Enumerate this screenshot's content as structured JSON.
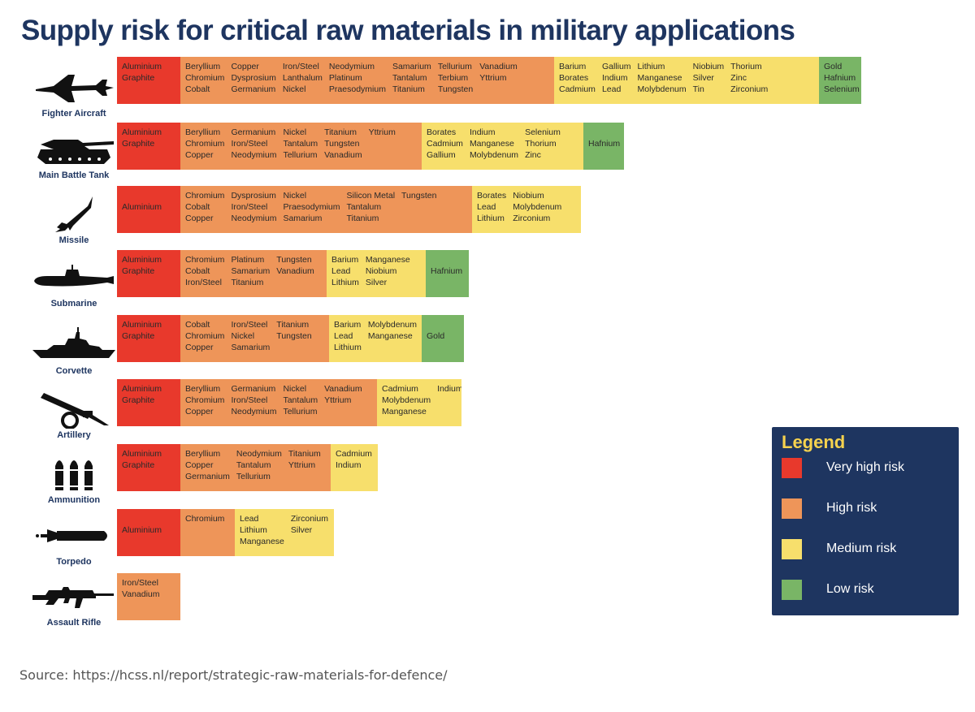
{
  "title": "Supply risk for critical raw materials in military applications",
  "source": "Source: https://hcss.nl/report/strategic-raw-materials-for-defence/",
  "colors": {
    "very_high": "#e8392c",
    "high": "#ee9559",
    "medium": "#f7df6c",
    "low": "#79b566"
  },
  "legend": {
    "title": "Legend",
    "items": [
      {
        "label": "Very high risk",
        "color": "#e8392c"
      },
      {
        "label": "High risk",
        "color": "#ee9559"
      },
      {
        "label": "Medium risk",
        "color": "#f7df6c"
      },
      {
        "label": "Low risk",
        "color": "#79b566"
      }
    ]
  },
  "chart_data": {
    "type": "table",
    "title": "Supply risk for critical raw materials in military applications",
    "risk_levels": [
      "Very high risk",
      "High risk",
      "Medium risk",
      "Low risk"
    ],
    "platforms": [
      {
        "name": "Fighter Aircraft",
        "icon": "fighter-aircraft-icon",
        "risk": {
          "very_high": [
            [
              "Aluminium",
              "Graphite"
            ]
          ],
          "high": [
            [
              "Beryllium",
              "Chromium",
              "Cobalt"
            ],
            [
              "Copper",
              "Dysprosium",
              "Germanium"
            ],
            [
              "Iron/Steel",
              "Lanthalum",
              "Nickel"
            ],
            [
              "Neodymium",
              "Platinum",
              "Praesodymium"
            ],
            [
              "Samarium",
              "Tantalum",
              "Titanium"
            ],
            [
              "Tellurium",
              "Terbium",
              "Tungsten"
            ],
            [
              "Vanadium",
              "Yttrium"
            ]
          ],
          "medium": [
            [
              "Barium",
              "Borates",
              "Cadmium"
            ],
            [
              "Gallium",
              "Indium",
              "Lead"
            ],
            [
              "Lithium",
              "Manganese",
              "Molybdenum"
            ],
            [
              "Niobium",
              "Silver",
              "Tin"
            ],
            [
              "Thorium",
              "Zinc",
              "Zirconium"
            ]
          ],
          "low": [
            [
              "Gold",
              "Hafnium",
              "Selenium"
            ]
          ]
        }
      },
      {
        "name": "Main Battle Tank",
        "icon": "tank-icon",
        "risk": {
          "very_high": [
            [
              "Aluminium",
              "Graphite"
            ]
          ],
          "high": [
            [
              "Beryllium",
              "Chromium",
              "Copper"
            ],
            [
              "Germanium",
              "Iron/Steel",
              "Neodymium"
            ],
            [
              "Nickel",
              "Tantalum",
              "Tellurium"
            ],
            [
              "Titanium",
              "Tungsten",
              "Vanadium"
            ],
            [
              "Yttrium"
            ]
          ],
          "medium": [
            [
              "Borates",
              "Cadmium",
              "Gallium"
            ],
            [
              "Indium",
              "Manganese",
              "Molybdenum"
            ],
            [
              "Selenium",
              "Thorium",
              "Zinc"
            ]
          ],
          "low": [
            [
              "Hafnium"
            ]
          ]
        }
      },
      {
        "name": "Missile",
        "icon": "missile-icon",
        "risk": {
          "very_high": [
            [
              "Aluminium"
            ]
          ],
          "high": [
            [
              "Chromium",
              "Cobalt",
              "Copper"
            ],
            [
              "Dysprosium",
              "Iron/Steel",
              "Neodymium"
            ],
            [
              "Nickel",
              "Praesodymium",
              "Samarium"
            ],
            [
              "Silicon Metal",
              "Tantalum",
              "Titanium"
            ],
            [
              "Tungsten"
            ]
          ],
          "medium": [
            [
              "Borates",
              "Lead",
              "Lithium"
            ],
            [
              "Niobium",
              "Molybdenum",
              "Zirconium"
            ]
          ],
          "low": []
        }
      },
      {
        "name": "Submarine",
        "icon": "submarine-icon",
        "risk": {
          "very_high": [
            [
              "Aluminium",
              "Graphite"
            ]
          ],
          "high": [
            [
              "Chromium",
              "Cobalt",
              "Iron/Steel"
            ],
            [
              "Platinum",
              "Samarium",
              "Titanium"
            ],
            [
              "Tungsten",
              "Vanadium"
            ]
          ],
          "medium": [
            [
              "Barium",
              "Lead",
              "Lithium"
            ],
            [
              "Manganese",
              "Niobium",
              "Silver"
            ]
          ],
          "low": [
            [
              "Hafnium"
            ]
          ]
        }
      },
      {
        "name": "Corvette",
        "icon": "corvette-icon",
        "risk": {
          "very_high": [
            [
              "Aluminium",
              "Graphite"
            ]
          ],
          "high": [
            [
              "Cobalt",
              "Chromium",
              "Copper"
            ],
            [
              "Iron/Steel",
              "Nickel",
              "Samarium"
            ],
            [
              "Titanium",
              "Tungsten"
            ]
          ],
          "medium": [
            [
              "Barium",
              "Lead",
              "Lithium"
            ],
            [
              "Molybdenum",
              "Manganese"
            ]
          ],
          "low": [
            [
              "Gold"
            ]
          ]
        }
      },
      {
        "name": "Artillery",
        "icon": "artillery-icon",
        "risk": {
          "very_high": [
            [
              "Aluminium",
              "Graphite"
            ]
          ],
          "high": [
            [
              "Beryllium",
              "Chromium",
              "Copper"
            ],
            [
              "Germanium",
              "Iron/Steel",
              "Neodymium"
            ],
            [
              "Nickel",
              "Tantalum",
              "Tellurium"
            ],
            [
              "Vanadium",
              "Yttrium"
            ]
          ],
          "medium": [
            [
              "Cadmium",
              "Molybdenum",
              "Manganese"
            ],
            [
              "Indium"
            ]
          ],
          "low": []
        }
      },
      {
        "name": "Ammunition",
        "icon": "ammunition-icon",
        "risk": {
          "very_high": [
            [
              "Aluminium",
              "Graphite"
            ]
          ],
          "high": [
            [
              "Beryllium",
              "Copper",
              "Germanium"
            ],
            [
              "Neodymium",
              "Tantalum",
              "Tellurium"
            ],
            [
              "Titanium",
              "Yttrium"
            ]
          ],
          "medium": [
            [
              "Cadmium",
              "Indium"
            ]
          ],
          "low": []
        }
      },
      {
        "name": "Torpedo",
        "icon": "torpedo-icon",
        "risk": {
          "very_high": [
            [
              "Aluminium"
            ]
          ],
          "high": [
            [
              "Chromium"
            ]
          ],
          "medium": [
            [
              "Lead",
              "Lithium",
              "Manganese"
            ],
            [
              "Zirconium",
              "Silver"
            ]
          ],
          "low": []
        }
      },
      {
        "name": "Assault Rifle",
        "icon": "assault-rifle-icon",
        "risk": {
          "very_high": [],
          "high": [
            [
              "Iron/Steel",
              "Vanadium"
            ]
          ],
          "medium": [],
          "low": []
        }
      }
    ]
  }
}
